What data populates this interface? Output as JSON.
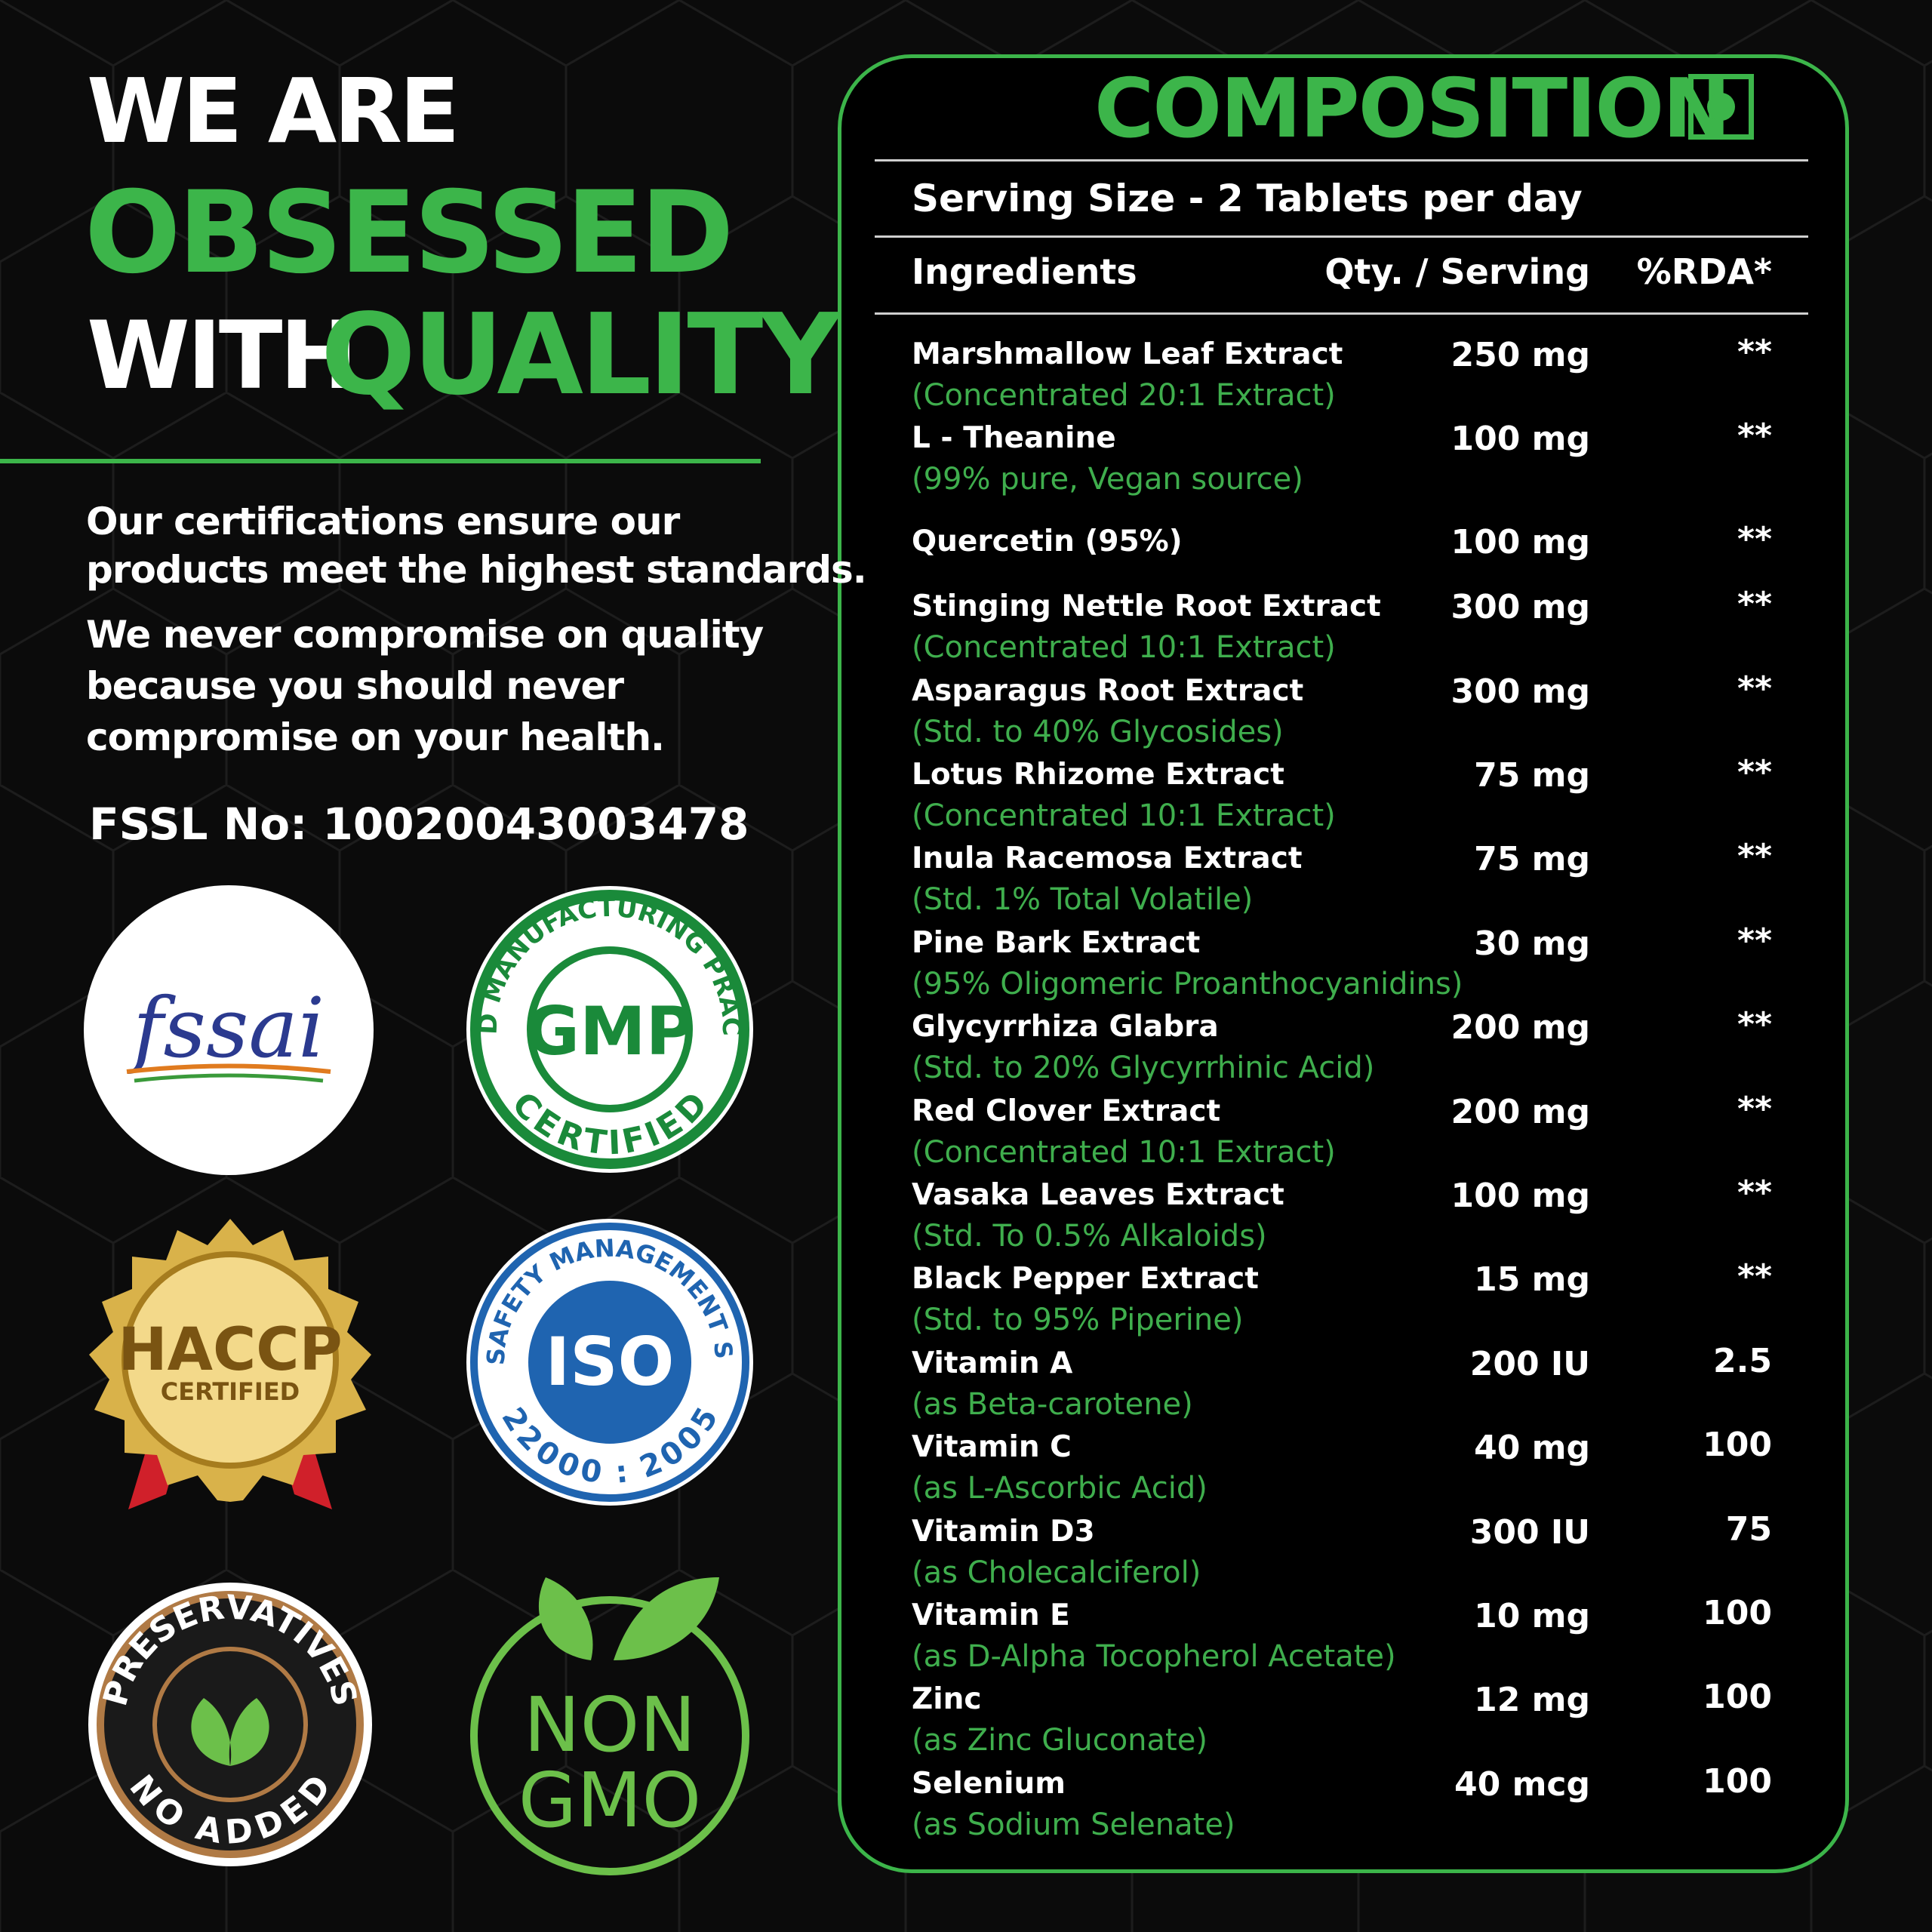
{
  "headline": {
    "line1": "WE ARE",
    "line2": "OBSESSED",
    "line3a": "WITH",
    "line3b": "QUALITY"
  },
  "paragraphs": [
    [
      "Our certifications ensure our",
      "products meet the highest standards."
    ],
    [
      "We never compromise on quality",
      "because you should never",
      "compromise on your health."
    ]
  ],
  "fssl": "FSSL No: 10020043003478",
  "badges": {
    "fssai": "fssai",
    "gmp": {
      "center": "GMP",
      "top": "GOOD MANUFACTURING PRACTICE",
      "bottom": "CERTIFIED"
    },
    "haccp": {
      "main": "HACCP",
      "sub": "CERTIFIED"
    },
    "iso": {
      "main": "ISO",
      "top": "FOOD SAFETY MANAGEMENT SYSTEM",
      "bottom": "22000 : 2005"
    },
    "preservatives": {
      "top": "PRESERVATIVES",
      "bottom": "NO ADDED"
    },
    "gmo": {
      "line1": "NON",
      "line2": "GMO"
    }
  },
  "composition": {
    "title": "COMPOSITION",
    "serving": "Serving Size - 2 Tablets per day",
    "headers": [
      "Ingredients",
      "Qty. / Serving",
      "%RDA*"
    ],
    "rows": [
      {
        "name": "Marshmallow Leaf Extract",
        "note": "(Concentrated 20:1 Extract)",
        "qty": "250 mg",
        "rda": "**"
      },
      {
        "name": "L - Theanine",
        "note": "(99% pure, Vegan source)",
        "qty": "100 mg",
        "rda": "**"
      },
      {
        "name": "Quercetin (95%)",
        "qty": "100 mg",
        "rda": "**"
      },
      {
        "name": "Stinging Nettle Root Extract",
        "note": "(Concentrated 10:1 Extract)",
        "qty": "300 mg",
        "rda": "**"
      },
      {
        "name": "Asparagus Root Extract",
        "note": "(Std. to 40% Glycosides)",
        "qty": "300 mg",
        "rda": "**"
      },
      {
        "name": "Lotus Rhizome Extract",
        "note": "(Concentrated 10:1 Extract)",
        "qty": "75 mg",
        "rda": "**"
      },
      {
        "name": "Inula Racemosa Extract",
        "note": "(Std. 1% Total Volatile)",
        "qty": "75 mg",
        "rda": "**"
      },
      {
        "name": "Pine Bark Extract",
        "note": "(95% Oligomeric Proanthocyanidins)",
        "qty": "30 mg",
        "rda": "**"
      },
      {
        "name": "Glycyrrhiza Glabra",
        "note": "(Std. to 20% Glycyrrhinic Acid)",
        "qty": "200 mg",
        "rda": "**"
      },
      {
        "name": "Red Clover Extract",
        "note": "(Concentrated 10:1 Extract)",
        "qty": "200 mg",
        "rda": "**"
      },
      {
        "name": "Vasaka Leaves Extract",
        "note": "(Std. To 0.5% Alkaloids)",
        "qty": "100 mg",
        "rda": "**"
      },
      {
        "name": "Black Pepper Extract",
        "note": "(Std. to 95% Piperine)",
        "qty": "15 mg",
        "rda": "**"
      },
      {
        "name": "Vitamin A",
        "note": "(as Beta-carotene)",
        "qty": "200 IU",
        "rda": "2.5"
      },
      {
        "name": "Vitamin C",
        "note": "(as L-Ascorbic Acid)",
        "qty": "40 mg",
        "rda": "100"
      },
      {
        "name": "Vitamin D3",
        "note": "(as Cholecalciferol)",
        "qty": "300 IU",
        "rda": "75"
      },
      {
        "name": "Vitamin E",
        "note": "(as D-Alpha Tocopherol Acetate)",
        "qty": "10 mg",
        "rda": "100"
      },
      {
        "name": "Zinc",
        "note": "(as Zinc Gluconate)",
        "qty": "12 mg",
        "rda": "100"
      },
      {
        "name": "Selenium",
        "note": "(as Sodium Selenate)",
        "qty": "40 mcg",
        "rda": "100"
      }
    ]
  }
}
